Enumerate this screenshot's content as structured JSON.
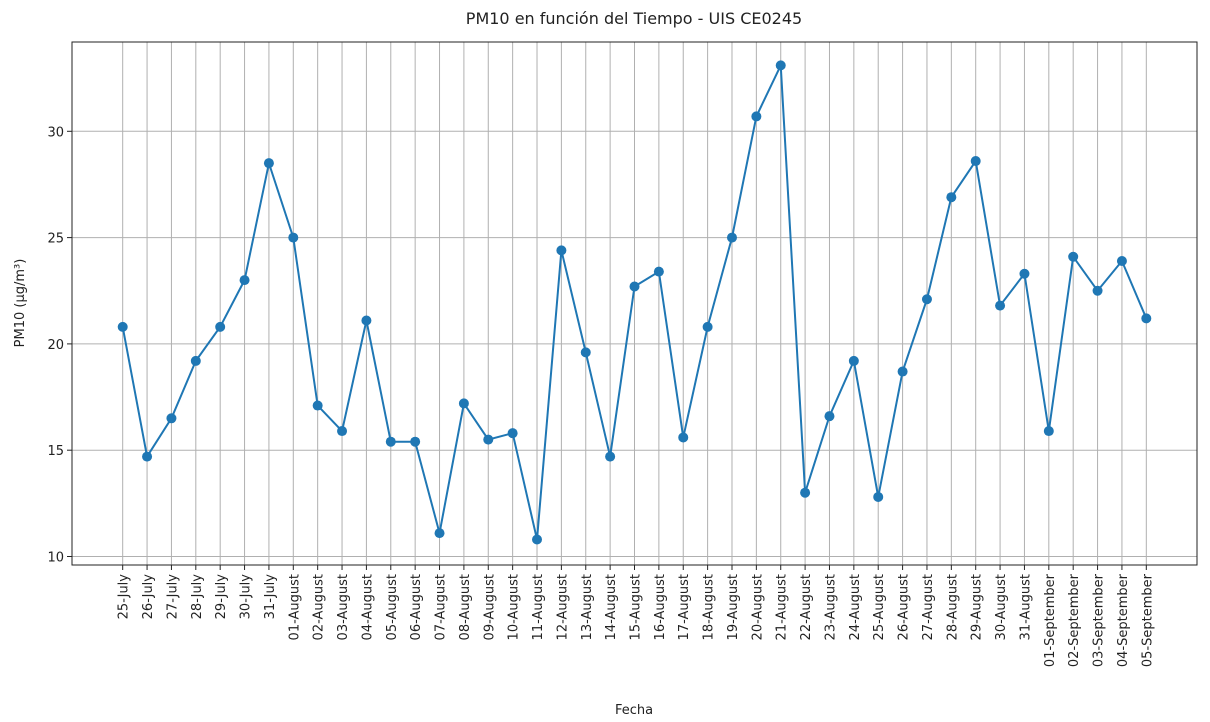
{
  "chart_data": {
    "type": "line",
    "title": "PM10 en función del Tiempo - UIS CE0245",
    "x_label": "Fecha",
    "y_label": "PM10 (µg/m³)",
    "categories": [
      "25-July",
      "26-July",
      "27-July",
      "28-July",
      "29-July",
      "30-July",
      "31-July",
      "01-August",
      "02-August",
      "03-August",
      "04-August",
      "05-August",
      "06-August",
      "07-August",
      "08-August",
      "09-August",
      "10-August",
      "11-August",
      "12-August",
      "13-August",
      "14-August",
      "15-August",
      "16-August",
      "17-August",
      "18-August",
      "19-August",
      "20-August",
      "21-August",
      "22-August",
      "23-August",
      "24-August",
      "25-August",
      "26-August",
      "27-August",
      "28-August",
      "29-August",
      "30-August",
      "31-August",
      "01-September",
      "02-September",
      "03-September",
      "04-September",
      "05-September"
    ],
    "series": [
      {
        "name": "PM10",
        "color": "#1f77b4",
        "values": [
          20.8,
          14.7,
          16.5,
          19.2,
          20.8,
          23.0,
          28.5,
          25.0,
          17.1,
          15.9,
          21.1,
          15.4,
          15.4,
          11.1,
          17.2,
          15.5,
          15.8,
          10.8,
          24.4,
          19.6,
          14.7,
          22.7,
          23.4,
          15.6,
          20.8,
          25.0,
          30.7,
          33.1,
          13.0,
          16.6,
          19.2,
          12.8,
          18.7,
          22.1,
          26.9,
          28.6,
          21.8,
          23.3,
          15.9,
          24.1,
          22.5,
          23.9,
          21.2
        ]
      }
    ],
    "ylim": [
      9.6,
      34.2
    ],
    "yticks": [
      10,
      15,
      20,
      25,
      30
    ],
    "grid": true
  }
}
